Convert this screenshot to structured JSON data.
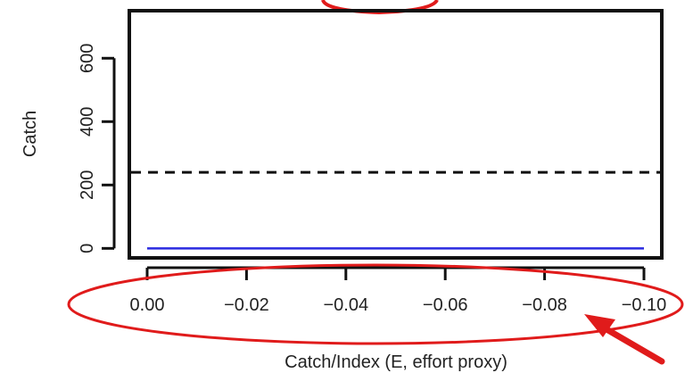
{
  "chart_data": {
    "type": "line",
    "title": "",
    "xlabel": "Catch/Index (E, effort proxy)",
    "ylabel": "Catch",
    "xlim": [
      0.0,
      -0.1
    ],
    "ylim": [
      -30,
      750
    ],
    "x_ticks": [
      0.0,
      -0.02,
      -0.04,
      -0.06,
      -0.08,
      -0.1
    ],
    "x_tick_labels": [
      "0.00",
      "−0.02",
      "−0.04",
      "−0.06",
      "−0.08",
      "−0.10"
    ],
    "y_ticks": [
      0,
      200,
      400,
      600
    ],
    "y_tick_labels": [
      "0",
      "200",
      "400",
      "600"
    ],
    "grid": false,
    "series": [
      {
        "style": "solid",
        "color": "#2a2ae0",
        "x": [
          0.0,
          -0.1
        ],
        "values": [
          0,
          0
        ]
      },
      {
        "style": "dashed",
        "color": "#111111",
        "x": [
          0.0,
          -0.1
        ],
        "values": [
          240,
          240
        ]
      }
    ],
    "annotations": {
      "ellipse_color": "#e01b1b",
      "arrow_color": "#e01b1b"
    }
  }
}
